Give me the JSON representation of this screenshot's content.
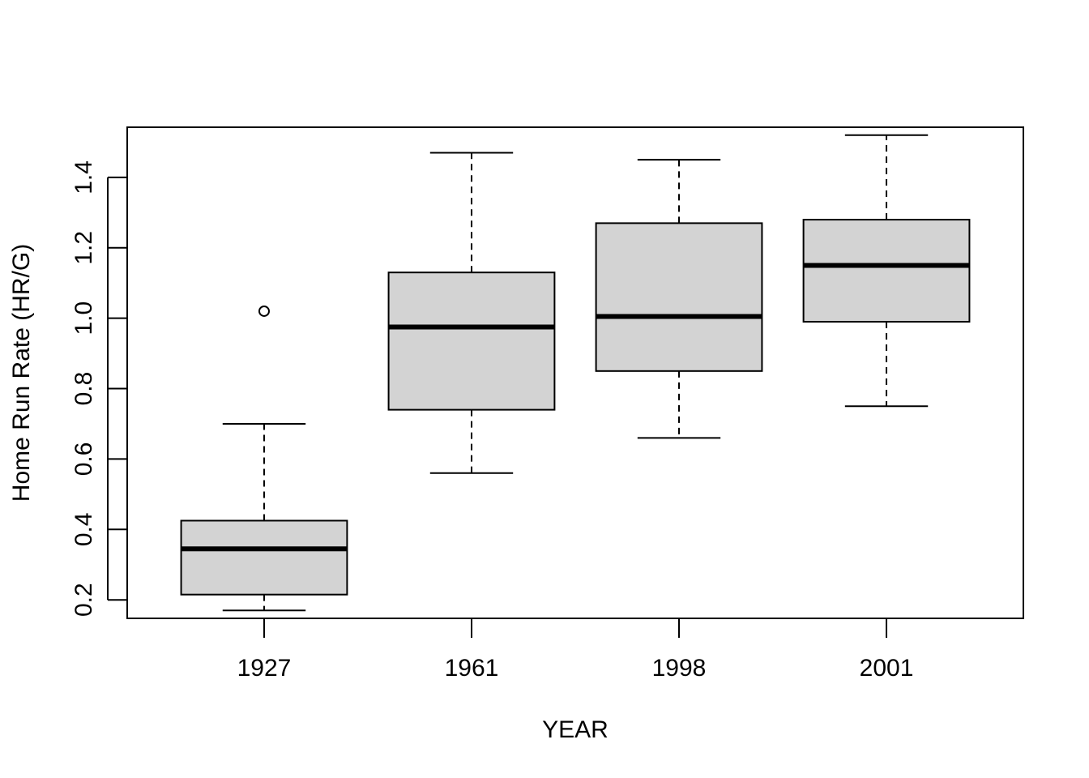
{
  "chart_data": {
    "type": "box",
    "title": "",
    "xlabel": "YEAR",
    "ylabel": "Home Run Rate (HR/G)",
    "categories": [
      "1927",
      "1961",
      "1998",
      "2001"
    ],
    "boxes": [
      {
        "category": "1927",
        "whisker_low": 0.17,
        "q1": 0.215,
        "median": 0.345,
        "q3": 0.425,
        "whisker_high": 0.7,
        "outliers": [
          1.02
        ]
      },
      {
        "category": "1961",
        "whisker_low": 0.56,
        "q1": 0.74,
        "median": 0.975,
        "q3": 1.13,
        "whisker_high": 1.47,
        "outliers": []
      },
      {
        "category": "1998",
        "whisker_low": 0.66,
        "q1": 0.85,
        "median": 1.005,
        "q3": 1.27,
        "whisker_high": 1.45,
        "outliers": []
      },
      {
        "category": "2001",
        "whisker_low": 0.75,
        "q1": 0.99,
        "median": 1.15,
        "q3": 1.28,
        "whisker_high": 1.52,
        "outliers": []
      }
    ],
    "y_ticks": [
      0.2,
      0.4,
      0.6,
      0.8,
      1.0,
      1.2,
      1.4
    ],
    "y_tick_labels": [
      "0.2",
      "0.4",
      "0.6",
      "0.8",
      "1.0",
      "1.2",
      "1.4"
    ],
    "ylim": [
      0.1475,
      1.5425
    ],
    "grid": false,
    "legend": "none",
    "colors": {
      "box_fill": "#d3d3d3",
      "stroke": "#000000"
    }
  }
}
